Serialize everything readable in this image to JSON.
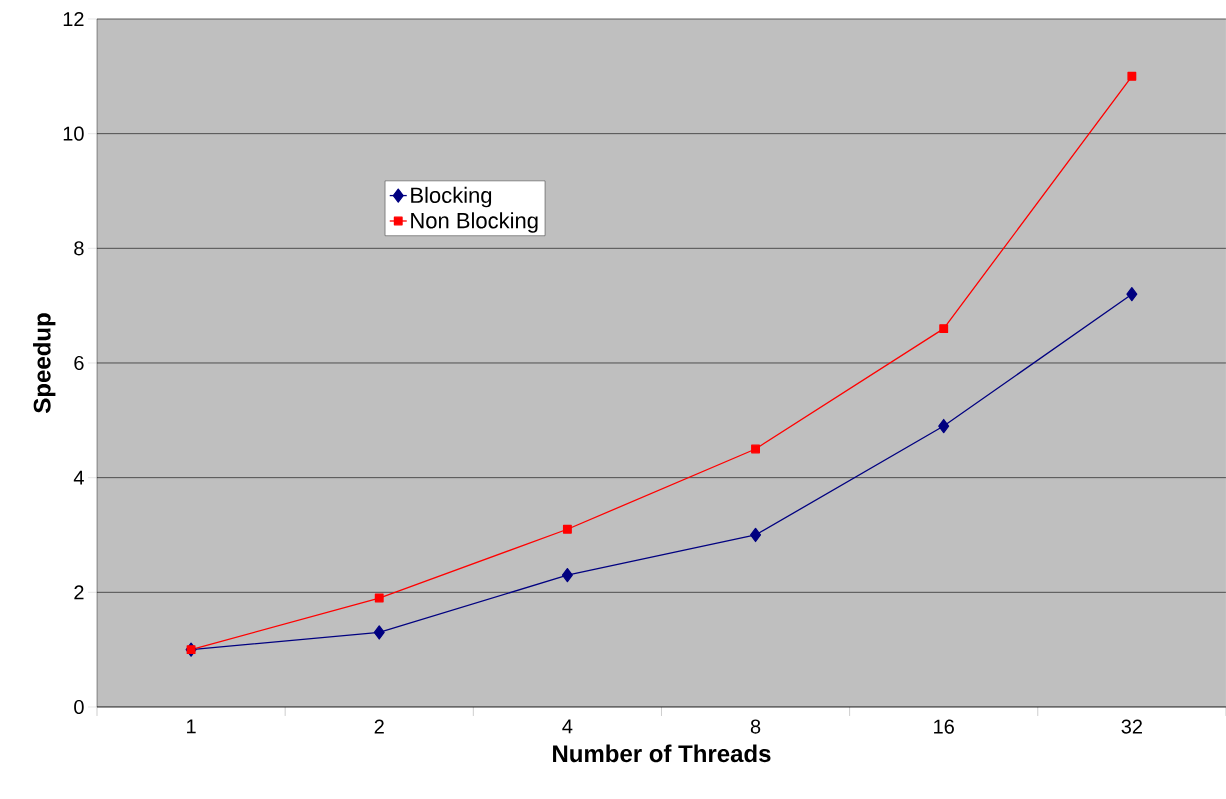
{
  "chart_data": {
    "type": "line",
    "xlabel": "Number of Threads",
    "ylabel": "Speedup",
    "categories": [
      "1",
      "2",
      "4",
      "8",
      "16",
      "32"
    ],
    "series": [
      {
        "name": "Blocking",
        "color": "#000080",
        "marker": "diamond",
        "values": [
          1.0,
          1.3,
          2.3,
          3.0,
          4.9,
          7.2
        ]
      },
      {
        "name": "Non Blocking",
        "color": "#ff0000",
        "marker": "square",
        "values": [
          1.0,
          1.9,
          3.1,
          4.5,
          6.6,
          11.0
        ]
      }
    ],
    "ylim": [
      0,
      12
    ],
    "yticks": [
      0,
      2,
      4,
      6,
      8,
      10,
      12
    ],
    "grid": "y",
    "legend": "top left",
    "line_style": "solid"
  }
}
